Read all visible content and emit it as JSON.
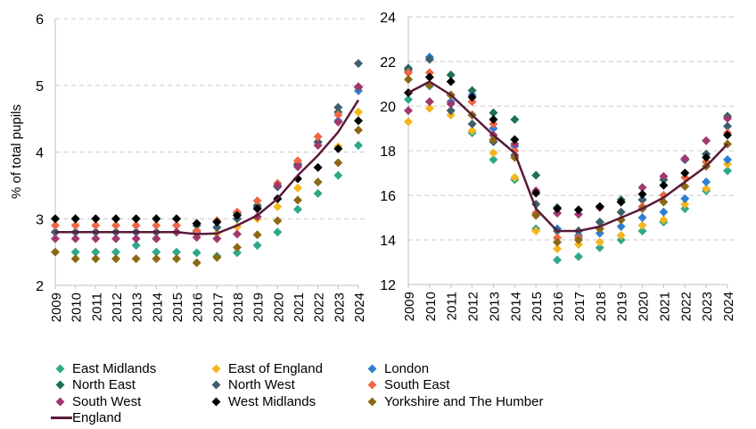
{
  "chart_data": [
    {
      "type": "scatter",
      "panel": "left",
      "ylabel": "% of total pupils",
      "xlabel": "",
      "ylim": [
        2,
        6
      ],
      "yticks": [
        2,
        3,
        4,
        5,
        6
      ],
      "grid": "horizontal dashed",
      "x": [
        "2009",
        "2010",
        "2011",
        "2012",
        "2013",
        "2014",
        "2015",
        "2016",
        "2017",
        "2018",
        "2019",
        "2020",
        "2021",
        "2022",
        "2023",
        "2024"
      ],
      "series": [
        {
          "name": "East Midlands",
          "kind": "marker",
          "color": "#2fa88a",
          "values": [
            2.8,
            2.5,
            2.5,
            2.5,
            2.6,
            2.5,
            2.5,
            2.49,
            2.44,
            2.49,
            2.6,
            2.8,
            3.14,
            3.38,
            3.65,
            4.1
          ]
        },
        {
          "name": "East of England",
          "kind": "marker",
          "color": "#f5b51c",
          "values": [
            2.8,
            2.8,
            2.8,
            2.8,
            2.8,
            2.8,
            2.8,
            2.78,
            2.78,
            2.88,
            3.0,
            3.18,
            3.46,
            4.1,
            4.08,
            4.6
          ]
        },
        {
          "name": "London",
          "kind": "marker",
          "color": "#2f7fd0",
          "values": [
            2.8,
            2.8,
            2.8,
            2.8,
            2.8,
            2.7,
            2.8,
            2.8,
            2.87,
            3.0,
            3.15,
            3.3,
            3.8,
            4.15,
            4.47,
            4.92
          ]
        },
        {
          "name": "North East",
          "kind": "marker",
          "color": "#1f6e5a",
          "values": [
            3.0,
            3.0,
            3.0,
            3.0,
            3.0,
            3.0,
            3.0,
            2.9,
            2.97,
            3.08,
            3.2,
            3.48,
            3.82,
            4.15,
            4.6,
            4.97
          ]
        },
        {
          "name": "North West",
          "kind": "marker",
          "color": "#3e5f6d",
          "values": [
            2.8,
            2.8,
            2.8,
            2.8,
            2.8,
            2.8,
            2.8,
            2.82,
            2.87,
            3.0,
            3.18,
            3.48,
            3.82,
            4.15,
            4.67,
            5.33
          ]
        },
        {
          "name": "South East",
          "kind": "marker",
          "color": "#ef6645",
          "values": [
            2.9,
            2.9,
            2.9,
            2.9,
            2.9,
            2.9,
            2.9,
            2.82,
            2.97,
            3.1,
            3.27,
            3.53,
            3.87,
            4.23,
            4.56,
            4.98
          ]
        },
        {
          "name": "South West",
          "kind": "marker",
          "color": "#a0386e",
          "values": [
            2.7,
            2.7,
            2.7,
            2.7,
            2.7,
            2.7,
            2.8,
            2.72,
            2.7,
            2.77,
            3.03,
            3.5,
            3.78,
            4.1,
            4.45,
            4.98
          ]
        },
        {
          "name": "West Midlands",
          "kind": "marker",
          "color": "#000000",
          "values": [
            3.0,
            3.0,
            3.0,
            3.0,
            3.0,
            3.0,
            3.0,
            2.93,
            2.95,
            3.05,
            3.15,
            3.3,
            3.6,
            3.77,
            4.05,
            4.47
          ]
        },
        {
          "name": "Yorkshire and The Humber",
          "kind": "marker",
          "color": "#8b6914",
          "values": [
            2.5,
            2.4,
            2.4,
            2.4,
            2.4,
            2.4,
            2.4,
            2.34,
            2.42,
            2.57,
            2.76,
            2.97,
            3.28,
            3.55,
            3.84,
            4.33
          ]
        },
        {
          "name": "England",
          "kind": "line",
          "color": "#5a1a3a",
          "values": [
            2.8,
            2.8,
            2.8,
            2.8,
            2.8,
            2.8,
            2.8,
            2.77,
            2.78,
            2.9,
            3.05,
            3.3,
            3.65,
            3.95,
            4.3,
            4.78
          ]
        }
      ]
    },
    {
      "type": "scatter",
      "panel": "right",
      "ylabel": "",
      "xlabel": "",
      "ylim": [
        12,
        24
      ],
      "yticks": [
        12,
        14,
        16,
        18,
        20,
        22,
        24
      ],
      "grid": "horizontal dashed",
      "x": [
        "2009",
        "2010",
        "2011",
        "2012",
        "2013",
        "2014",
        "2015",
        "2016",
        "2017",
        "2018",
        "2019",
        "2020",
        "2021",
        "2022",
        "2023",
        "2024"
      ],
      "series": [
        {
          "name": "East Midlands",
          "kind": "marker",
          "color": "#2fa88a",
          "values": [
            20.3,
            20.9,
            20.2,
            18.8,
            17.6,
            16.7,
            14.5,
            13.1,
            13.25,
            13.65,
            14.0,
            14.4,
            14.8,
            15.4,
            16.2,
            17.1
          ]
        },
        {
          "name": "East of England",
          "kind": "marker",
          "color": "#f5b51c",
          "values": [
            19.3,
            19.9,
            19.6,
            18.9,
            17.9,
            16.8,
            14.4,
            13.6,
            13.8,
            13.9,
            14.2,
            14.65,
            14.9,
            15.6,
            16.3,
            17.4
          ]
        },
        {
          "name": "London",
          "kind": "marker",
          "color": "#2f7fd0",
          "values": [
            21.7,
            22.2,
            20.2,
            20.5,
            19.0,
            18.2,
            15.2,
            14.5,
            14.2,
            14.3,
            14.6,
            15.0,
            15.25,
            15.85,
            16.6,
            17.6
          ]
        },
        {
          "name": "North East",
          "kind": "marker",
          "color": "#1f6e5a",
          "values": [
            21.7,
            22.1,
            21.4,
            20.7,
            19.7,
            19.4,
            16.9,
            15.45,
            14.4,
            14.8,
            15.8,
            15.8,
            16.7,
            17.6,
            17.85,
            19.55
          ]
        },
        {
          "name": "North West",
          "kind": "marker",
          "color": "#3e5f6d",
          "values": [
            21.6,
            22.1,
            19.8,
            19.2,
            18.4,
            17.8,
            15.6,
            14.4,
            14.4,
            14.8,
            15.25,
            15.8,
            16.0,
            17.6,
            17.85,
            19.1
          ]
        },
        {
          "name": "South East",
          "kind": "marker",
          "color": "#ef6645",
          "values": [
            21.5,
            21.5,
            20.5,
            20.2,
            19.2,
            18.0,
            15.2,
            14.1,
            14.1,
            14.5,
            14.9,
            15.5,
            16.0,
            16.8,
            17.5,
            18.8
          ]
        },
        {
          "name": "South West",
          "kind": "marker",
          "color": "#a0386e",
          "values": [
            19.8,
            20.2,
            20.1,
            19.6,
            18.7,
            18.3,
            16.2,
            15.2,
            15.15,
            15.45,
            15.7,
            16.35,
            16.85,
            17.65,
            18.45,
            19.45
          ]
        },
        {
          "name": "West Midlands",
          "kind": "marker",
          "color": "#000000",
          "values": [
            20.6,
            21.3,
            21.1,
            20.4,
            19.4,
            18.5,
            16.1,
            15.4,
            15.35,
            15.5,
            15.7,
            16.05,
            16.45,
            17.0,
            17.7,
            18.7
          ]
        },
        {
          "name": "Yorkshire and The Humber",
          "kind": "marker",
          "color": "#8b6914",
          "values": [
            21.2,
            20.95,
            20.5,
            19.6,
            18.5,
            17.7,
            15.1,
            13.9,
            14.0,
            14.5,
            14.9,
            15.4,
            15.7,
            16.4,
            17.3,
            18.3
          ]
        },
        {
          "name": "England",
          "kind": "line",
          "color": "#5a1a3a",
          "values": [
            20.6,
            21.1,
            20.5,
            19.6,
            18.7,
            17.9,
            15.4,
            14.4,
            14.4,
            14.6,
            15.0,
            15.4,
            15.9,
            16.6,
            17.3,
            18.3
          ]
        }
      ]
    }
  ],
  "legend": {
    "placement": "bottom",
    "items": [
      {
        "label": "East Midlands",
        "color": "#2fa88a",
        "kind": "marker"
      },
      {
        "label": "East of England",
        "color": "#f5b51c",
        "kind": "marker"
      },
      {
        "label": "London",
        "color": "#2f7fd0",
        "kind": "marker"
      },
      {
        "label": "North East",
        "color": "#1f6e5a",
        "kind": "marker"
      },
      {
        "label": "North West",
        "color": "#3e5f6d",
        "kind": "marker"
      },
      {
        "label": "South East",
        "color": "#ef6645",
        "kind": "marker"
      },
      {
        "label": "South West",
        "color": "#a0386e",
        "kind": "marker"
      },
      {
        "label": "West Midlands",
        "color": "#000000",
        "kind": "marker"
      },
      {
        "label": "Yorkshire and The Humber",
        "color": "#8b6914",
        "kind": "marker"
      },
      {
        "label": "England",
        "color": "#5a1a3a",
        "kind": "line"
      }
    ]
  }
}
